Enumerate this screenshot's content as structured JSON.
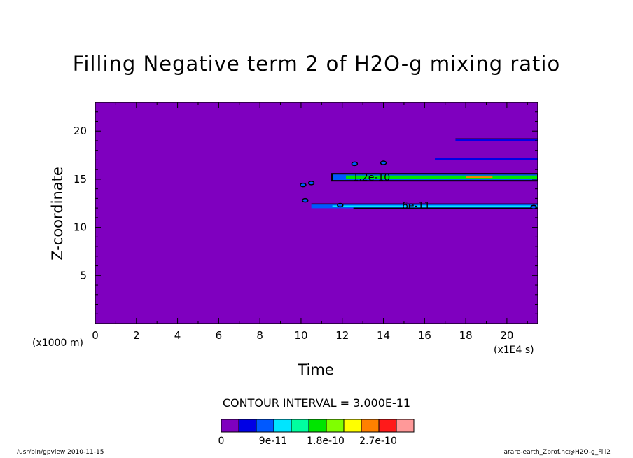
{
  "chart_data": {
    "type": "heatmap",
    "title": "Filling Negative term 2 of H2O-g mixing ratio",
    "xlabel": "Time",
    "ylabel": "Z-coordinate",
    "x_scale_note": "(x1E4 s)",
    "y_scale_note": "(x1000 m)",
    "xlim": [
      0,
      21.5
    ],
    "ylim": [
      0,
      23
    ],
    "x_ticks": [
      0,
      2,
      4,
      6,
      8,
      10,
      12,
      14,
      16,
      18,
      20
    ],
    "y_ticks": [
      5,
      10,
      15,
      20
    ],
    "contour_interval": "CONTOUR INTERVAL = 3.000E-11",
    "colorbar": {
      "colors": [
        "#7f00bf",
        "#0000e5",
        "#0059ff",
        "#00e5ff",
        "#00ff9f",
        "#00e500",
        "#80ff00",
        "#ffff00",
        "#ff8000",
        "#ff1a1a",
        "#ff9999"
      ],
      "labels": [
        "0",
        "9e-11",
        "1.8e-10",
        "2.7e-10"
      ]
    },
    "contour_labels": [
      "1.2e-10",
      "6e-11"
    ],
    "bands": [
      {
        "z": 15.2,
        "t_start": 11.5,
        "t_end": 21.5,
        "level": "1.2e-10"
      },
      {
        "z": 12.2,
        "t_start": 10.5,
        "t_end": 21.5,
        "level": "6e-11"
      },
      {
        "z": 17.1,
        "t_start": 16.5,
        "t_end": 21.5,
        "level": "3e-11"
      },
      {
        "z": 19.1,
        "t_start": 17.5,
        "t_end": 21.5,
        "level": "3e-11"
      }
    ]
  },
  "footer": {
    "left": "/usr/bin/gpview  2010-11-15",
    "right": "arare-earth_Zprof.nc@H2O-g_Fill2"
  }
}
